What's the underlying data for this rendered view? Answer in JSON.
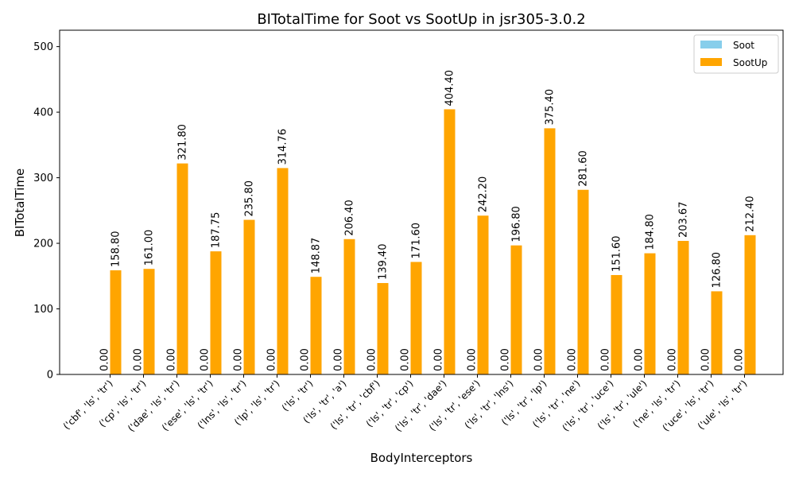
{
  "chart_data": {
    "type": "bar",
    "title": "BITotalTime for Soot vs SootUp in jsr305-3.0.2",
    "xlabel": "BodyInterceptors",
    "ylabel": "BITotalTime",
    "ylim": [
      0,
      525
    ],
    "yticks": [
      0,
      100,
      200,
      300,
      400,
      500
    ],
    "grid": false,
    "legend_position": "top-right",
    "categories": [
      "('cbf', 'ls', 'tr')",
      "('cp', 'ls', 'tr')",
      "('dae', 'ls', 'tr')",
      "('ese', 'ls', 'tr')",
      "('lns', 'ls', 'tr')",
      "('lp', 'ls', 'tr')",
      "('ls', 'tr')",
      "('ls', 'tr', 'a')",
      "('ls', 'tr', 'cbf')",
      "('ls', 'tr', 'cp')",
      "('ls', 'tr', 'dae')",
      "('ls', 'tr', 'ese')",
      "('ls', 'tr', 'lns')",
      "('ls', 'tr', 'lp')",
      "('ls', 'tr', 'ne')",
      "('ls', 'tr', 'uce')",
      "('ls', 'tr', 'ule')",
      "('ne', 'ls', 'tr')",
      "('uce', 'ls', 'tr')",
      "('ule', 'ls', 'tr')"
    ],
    "series": [
      {
        "name": "Soot",
        "color": "#87ceeb",
        "values": [
          0,
          0,
          0,
          0,
          0,
          0,
          0,
          0,
          0,
          0,
          0,
          0,
          0,
          0,
          0,
          0,
          0,
          0,
          0,
          0
        ],
        "labels": [
          "0.00",
          "0.00",
          "0.00",
          "0.00",
          "0.00",
          "0.00",
          "0.00",
          "0.00",
          "0.00",
          "0.00",
          "0.00",
          "0.00",
          "0.00",
          "0.00",
          "0.00",
          "0.00",
          "0.00",
          "0.00",
          "0.00",
          "0.00"
        ]
      },
      {
        "name": "SootUp",
        "color": "#ffa500",
        "values": [
          158.8,
          161.0,
          321.8,
          187.75,
          235.8,
          314.76,
          148.87,
          206.4,
          139.4,
          171.6,
          404.4,
          242.2,
          196.8,
          375.4,
          281.6,
          151.6,
          184.8,
          203.67,
          126.8,
          212.4
        ],
        "labels": [
          "158.80",
          "161.00",
          "321.80",
          "187.75",
          "235.80",
          "314.76",
          "148.87",
          "206.40",
          "139.40",
          "171.60",
          "404.40",
          "242.20",
          "196.80",
          "375.40",
          "281.60",
          "151.60",
          "184.80",
          "203.67",
          "126.80",
          "212.40"
        ]
      }
    ]
  }
}
